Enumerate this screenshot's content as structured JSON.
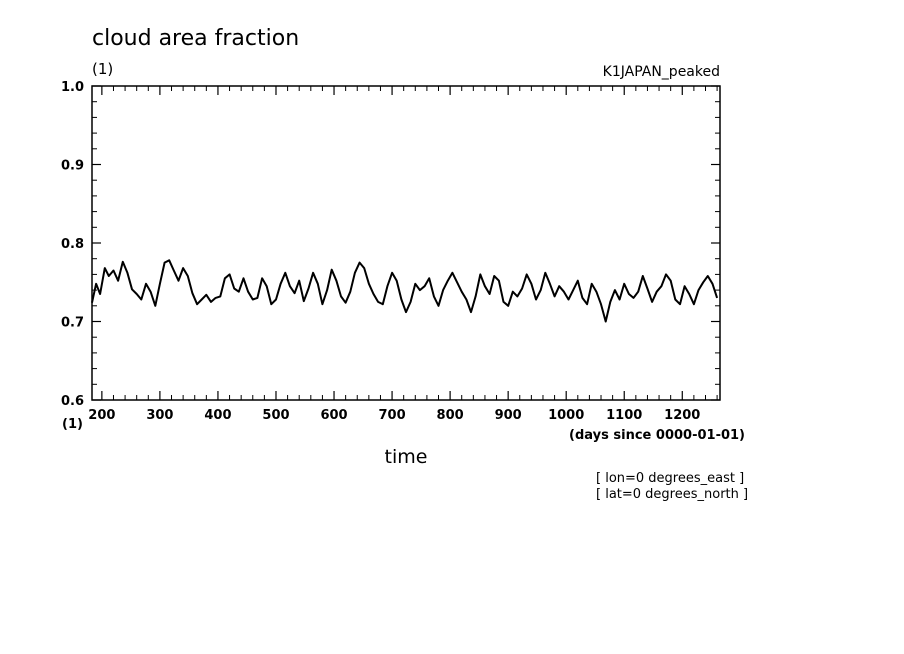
{
  "chart_data": {
    "type": "line",
    "title": "cloud area fraction",
    "y_units": "(1)",
    "x_units_left": "(1)",
    "dataset_label": "K1JAPAN_peaked",
    "xlabel": "time",
    "x_units": "(days since 0000-01-01)",
    "xlim": [
      183,
      1265
    ],
    "ylim": [
      0.6,
      1.0
    ],
    "x_ticks": [
      200,
      300,
      400,
      500,
      600,
      700,
      800,
      900,
      1000,
      1100,
      1200
    ],
    "x_tick_labels": [
      "200",
      "300",
      "400",
      "500",
      "600",
      "700",
      "800",
      "900",
      "1000",
      "1100",
      "1200"
    ],
    "y_ticks": [
      0.6,
      0.7,
      0.8,
      0.9,
      1.0
    ],
    "y_tick_labels": [
      "0.6",
      "0.7",
      "0.8",
      "0.9",
      "1.0"
    ],
    "grid": false,
    "annotations": [
      "[ lon=0 degrees_east ]",
      "[ lat=0 degrees_north ]"
    ],
    "series": [
      {
        "x": [
          183,
          190,
          197,
          205,
          212,
          220,
          228,
          236,
          244,
          252,
          260,
          268,
          276,
          284,
          292,
          300,
          308,
          316,
          324,
          332,
          340,
          348,
          356,
          364,
          372,
          380,
          388,
          396,
          404,
          412,
          420,
          428,
          436,
          444,
          452,
          460,
          468,
          476,
          484,
          492,
          500,
          508,
          516,
          524,
          532,
          540,
          548,
          556,
          564,
          572,
          580,
          588,
          596,
          604,
          612,
          620,
          628,
          636,
          644,
          652,
          660,
          668,
          676,
          684,
          692,
          700,
          708,
          716,
          724,
          732,
          740,
          748,
          756,
          764,
          772,
          780,
          788,
          796,
          804,
          812,
          820,
          828,
          836,
          844,
          852,
          860,
          868,
          876,
          884,
          892,
          900,
          908,
          916,
          924,
          932,
          940,
          948,
          956,
          964,
          972,
          980,
          988,
          996,
          1004,
          1012,
          1020,
          1028,
          1036,
          1044,
          1052,
          1060,
          1068,
          1076,
          1084,
          1092,
          1100,
          1108,
          1116,
          1124,
          1132,
          1140,
          1148,
          1156,
          1164,
          1172,
          1180,
          1188,
          1196,
          1204,
          1212,
          1220,
          1228,
          1236,
          1244,
          1252,
          1260
        ],
        "values": [
          0.724,
          0.748,
          0.735,
          0.768,
          0.758,
          0.765,
          0.752,
          0.776,
          0.762,
          0.741,
          0.735,
          0.728,
          0.748,
          0.738,
          0.72,
          0.748,
          0.775,
          0.778,
          0.765,
          0.752,
          0.768,
          0.758,
          0.736,
          0.722,
          0.728,
          0.734,
          0.725,
          0.73,
          0.732,
          0.755,
          0.76,
          0.742,
          0.738,
          0.755,
          0.738,
          0.728,
          0.73,
          0.755,
          0.745,
          0.722,
          0.728,
          0.748,
          0.762,
          0.745,
          0.736,
          0.752,
          0.726,
          0.742,
          0.762,
          0.748,
          0.722,
          0.74,
          0.766,
          0.752,
          0.732,
          0.724,
          0.738,
          0.762,
          0.775,
          0.768,
          0.748,
          0.735,
          0.725,
          0.722,
          0.745,
          0.762,
          0.752,
          0.728,
          0.712,
          0.725,
          0.748,
          0.74,
          0.745,
          0.755,
          0.732,
          0.72,
          0.74,
          0.752,
          0.762,
          0.75,
          0.738,
          0.728,
          0.712,
          0.732,
          0.76,
          0.745,
          0.735,
          0.758,
          0.752,
          0.725,
          0.72,
          0.738,
          0.732,
          0.742,
          0.76,
          0.748,
          0.728,
          0.74,
          0.762,
          0.748,
          0.732,
          0.745,
          0.738,
          0.728,
          0.74,
          0.752,
          0.73,
          0.722,
          0.748,
          0.738,
          0.722,
          0.7,
          0.725,
          0.74,
          0.728,
          0.748,
          0.735,
          0.73,
          0.738,
          0.758,
          0.742,
          0.725,
          0.738,
          0.745,
          0.76,
          0.752,
          0.728,
          0.722,
          0.745,
          0.735,
          0.722,
          0.74,
          0.75,
          0.758,
          0.748,
          0.73
        ]
      }
    ]
  }
}
